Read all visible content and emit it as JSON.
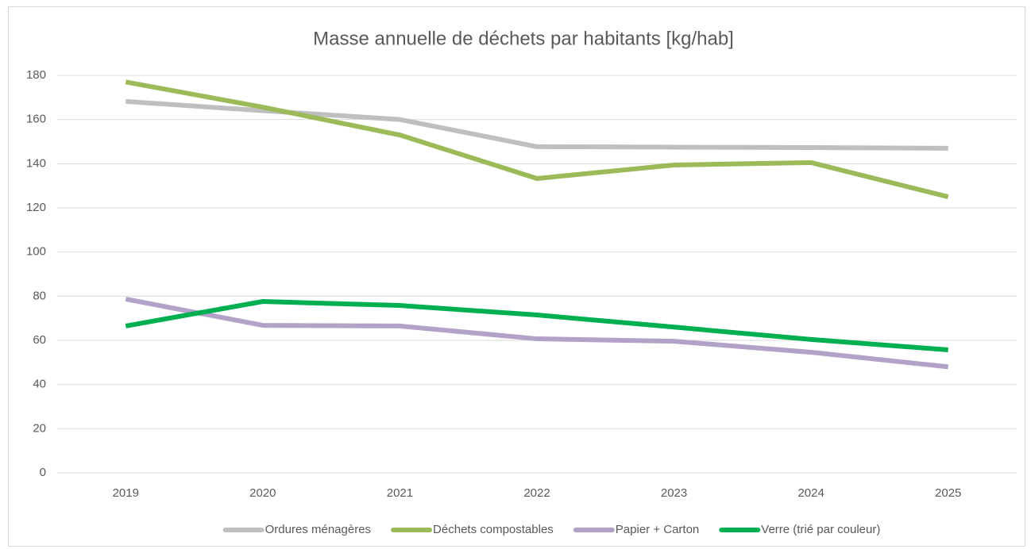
{
  "chart_data": {
    "type": "line",
    "title": "Masse annuelle de déchets par habitants [kg/hab]",
    "categories": [
      "2019",
      "2020",
      "2021",
      "2022",
      "2023",
      "2024",
      "2025"
    ],
    "series": [
      {
        "name": "Ordures ménagères",
        "color": "#bfbfbf",
        "values": [
          168.2,
          164,
          160,
          147.7,
          147.5,
          147.3,
          147
        ]
      },
      {
        "name": "Déchets compostables",
        "color": "#9bbb59",
        "values": [
          177,
          165.6,
          153,
          133.3,
          139.4,
          140.5,
          125
        ]
      },
      {
        "name": "Papier + Carton",
        "color": "#b3a2c7",
        "values": [
          78.7,
          66.8,
          66.5,
          60.7,
          59.6,
          54.6,
          48
        ]
      },
      {
        "name": "Verre (trié par couleur)",
        "color": "#00b050",
        "values": [
          66.5,
          77.6,
          75.8,
          71.5,
          66,
          60.4,
          55.7
        ]
      }
    ],
    "ylim": [
      0,
      180
    ],
    "yticks": [
      0,
      20,
      40,
      60,
      80,
      100,
      120,
      140,
      160,
      180
    ],
    "grid": true,
    "legend": "bottom"
  }
}
